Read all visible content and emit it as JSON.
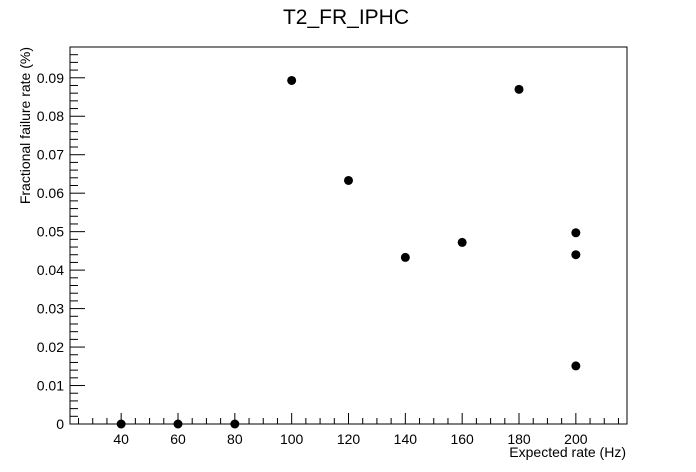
{
  "chart_data": {
    "type": "scatter",
    "title": "T2_FR_IPHC",
    "xlabel": "Expected rate (Hz)",
    "ylabel": "Fractional failure rate (%)",
    "xlim": [
      22,
      218
    ],
    "ylim": [
      0,
      0.098
    ],
    "x_ticks": [
      {
        "value": 40,
        "label": "40"
      },
      {
        "value": 60,
        "label": "60"
      },
      {
        "value": 80,
        "label": "80"
      },
      {
        "value": 100,
        "label": "100"
      },
      {
        "value": 120,
        "label": "120"
      },
      {
        "value": 140,
        "label": "140"
      },
      {
        "value": 160,
        "label": "160"
      },
      {
        "value": 180,
        "label": "180"
      },
      {
        "value": 200,
        "label": "200"
      }
    ],
    "y_ticks": [
      {
        "value": 0,
        "label": "0"
      },
      {
        "value": 0.01,
        "label": "0.01"
      },
      {
        "value": 0.02,
        "label": "0.02"
      },
      {
        "value": 0.03,
        "label": "0.03"
      },
      {
        "value": 0.04,
        "label": "0.04"
      },
      {
        "value": 0.05,
        "label": "0.05"
      },
      {
        "value": 0.06,
        "label": "0.06"
      },
      {
        "value": 0.07,
        "label": "0.07"
      },
      {
        "value": 0.08,
        "label": "0.08"
      },
      {
        "value": 0.09,
        "label": "0.09"
      }
    ],
    "grid": false,
    "marker_color": "#000000",
    "points": [
      {
        "x": 40,
        "y": 0
      },
      {
        "x": 60,
        "y": 0
      },
      {
        "x": 80,
        "y": 0
      },
      {
        "x": 100,
        "y": 0.0893
      },
      {
        "x": 120,
        "y": 0.0633
      },
      {
        "x": 140,
        "y": 0.0433
      },
      {
        "x": 160,
        "y": 0.0472
      },
      {
        "x": 180,
        "y": 0.087
      },
      {
        "x": 200,
        "y": 0.0497
      },
      {
        "x": 200,
        "y": 0.044
      },
      {
        "x": 200,
        "y": 0.0151
      }
    ]
  }
}
